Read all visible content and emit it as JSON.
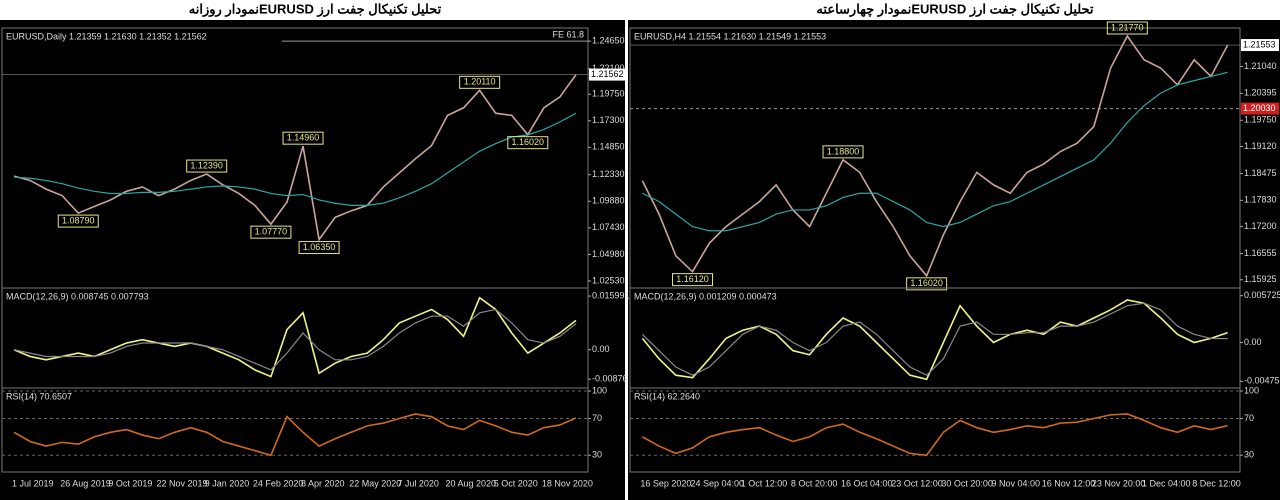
{
  "chart_data": [
    {
      "type": "line",
      "title": "تحلیل تکنیکال جفت ارز EURUSDنمودار روزانه",
      "label": "EURUSD,Daily  1.21359 1.21630 1.21352 1.21562",
      "ylim": [
        1.0216,
        1.2558
      ],
      "yticks": [
        {
          "value": 1.2465,
          "label": "1.24650"
        },
        {
          "value": 1.221,
          "label": "1.22100"
        },
        {
          "value": 1.1975,
          "label": "1.19750"
        },
        {
          "value": 1.173,
          "label": "1.17300"
        },
        {
          "value": 1.1485,
          "label": "1.14850"
        },
        {
          "value": 1.1233,
          "label": "1.12330"
        },
        {
          "value": 1.0988,
          "label": "1.09880"
        },
        {
          "value": 1.0743,
          "label": "1.07430"
        },
        {
          "value": 1.0498,
          "label": "1.04980"
        },
        {
          "value": 1.0253,
          "label": "1.02530"
        }
      ],
      "series": [
        {
          "color": "#c9a59a",
          "values": [
            1.122,
            1.118,
            1.11,
            1.104,
            1.0879,
            1.094,
            1.1,
            1.108,
            1.112,
            1.104,
            1.11,
            1.118,
            1.1239,
            1.114,
            1.106,
            1.095,
            1.0777,
            1.098,
            1.1496,
            1.0635,
            1.084,
            1.09,
            1.095,
            1.112,
            1.125,
            1.138,
            1.15,
            1.178,
            1.185,
            1.2011,
            1.18,
            1.178,
            1.1602,
            1.185,
            1.195,
            1.2156
          ]
        },
        {
          "color": "#2aa7a7",
          "values": [
            1.121,
            1.12,
            1.118,
            1.115,
            1.111,
            1.108,
            1.106,
            1.106,
            1.107,
            1.107,
            1.108,
            1.11,
            1.112,
            1.113,
            1.112,
            1.11,
            1.106,
            1.104,
            1.105,
            1.1,
            1.097,
            1.095,
            1.095,
            1.097,
            1.102,
            1.108,
            1.115,
            1.125,
            1.135,
            1.145,
            1.152,
            1.158,
            1.16,
            1.165,
            1.172,
            1.18
          ]
        }
      ],
      "annotations": [
        {
          "value": 1.0879,
          "label": "1.08790"
        },
        {
          "value": 1.1239,
          "label": "1.12390"
        },
        {
          "value": 1.0777,
          "label": "1.07770"
        },
        {
          "value": 1.1496,
          "label": "1.14960"
        },
        {
          "value": 1.0635,
          "label": "1.06350"
        },
        {
          "value": 1.2011,
          "label": "1.20110"
        },
        {
          "value": 1.1602,
          "label": "1.16020"
        }
      ],
      "hlines": [
        {
          "value": 1.2465,
          "label": "FE 61.8"
        }
      ],
      "last": {
        "value": 1.21562,
        "label": "1.21562"
      }
    },
    {
      "type": "line",
      "label": "MACD(12,26,9) 0.008745 0.007793",
      "ylim": [
        -0.0105,
        0.0175
      ],
      "yticks": [
        0.015991,
        {
          "value": 0,
          "label": "0.00"
        },
        -0.00876
      ],
      "series": [
        {
          "color": "#f2f28a",
          "values": [
            0.0,
            -0.002,
            -0.003,
            -0.002,
            -0.001,
            -0.002,
            0.0,
            0.002,
            0.003,
            0.002,
            0.001,
            0.002,
            0.001,
            -0.001,
            -0.003,
            -0.006,
            -0.008,
            0.006,
            0.011,
            -0.007,
            -0.004,
            -0.002,
            -0.001,
            0.003,
            0.008,
            0.01,
            0.012,
            0.009,
            0.004,
            0.0155,
            0.012,
            0.005,
            -0.001,
            0.002,
            0.005,
            0.008745
          ]
        },
        {
          "color": "#8a8a8a",
          "values": [
            0.0,
            -0.001,
            -0.002,
            -0.002,
            -0.002,
            -0.002,
            -0.001,
            0.001,
            0.002,
            0.002,
            0.002,
            0.002,
            0.001,
            0.0,
            -0.002,
            -0.004,
            -0.006,
            -0.001,
            0.005,
            0.0,
            -0.003,
            -0.003,
            -0.002,
            0.001,
            0.005,
            0.008,
            0.01,
            0.01,
            0.007,
            0.011,
            0.012,
            0.008,
            0.003,
            0.002,
            0.004,
            0.007793
          ]
        }
      ]
    },
    {
      "type": "line",
      "label": "RSI(14) 70.6507",
      "ylim": [
        15,
        100
      ],
      "yticks": [
        100,
        70,
        30
      ],
      "grid": true,
      "categories": [
        "1 Jul 2019",
        null,
        null,
        "26 Aug 2019",
        null,
        null,
        "9 Oct 2019",
        null,
        null,
        "22 Nov 2019",
        null,
        null,
        "9 Jan 2020",
        null,
        null,
        "24 Feb 2020",
        null,
        null,
        "8 Apr 2020",
        null,
        null,
        "22 May 2020",
        null,
        null,
        "7 Jul 2020",
        null,
        null,
        "20 Aug 2020",
        null,
        null,
        "5 Oct 2020",
        null,
        null,
        "18 Nov 2020",
        null,
        null
      ],
      "series": [
        {
          "color": "#d2691e",
          "values": [
            55,
            45,
            40,
            44,
            42,
            50,
            55,
            58,
            52,
            48,
            55,
            60,
            55,
            45,
            40,
            35,
            30,
            72,
            55,
            40,
            48,
            55,
            62,
            65,
            70,
            75,
            72,
            62,
            58,
            68,
            62,
            55,
            52,
            60,
            63,
            70.6507
          ]
        }
      ]
    },
    {
      "type": "line",
      "title": "تحلیل تکنیکال جفت ارز EURUSDنمودار چهارساعته",
      "label": "EURUSD,H4  1.21554 1.21630 1.21549 1.21553",
      "ylim": [
        1.158,
        1.2189
      ],
      "yticks": [
        {
          "value": 1.2104,
          "label": "1.21040"
        },
        {
          "value": 1.20395,
          "label": "1.20395"
        },
        {
          "value": 1.1975,
          "label": "1.19750"
        },
        {
          "value": 1.1912,
          "label": "1.19120"
        },
        {
          "value": 1.18475,
          "label": "1.18475"
        },
        {
          "value": 1.1783,
          "label": "1.17830"
        },
        {
          "value": 1.172,
          "label": "1.17200"
        },
        {
          "value": 1.16555,
          "label": "1.16555"
        },
        {
          "value": 1.15925,
          "label": "1.15925"
        }
      ],
      "series": [
        {
          "color": "#c9a59a",
          "values": [
            1.183,
            1.175,
            1.165,
            1.1612,
            1.168,
            1.172,
            1.175,
            1.178,
            1.182,
            1.176,
            1.172,
            1.18,
            1.188,
            1.185,
            1.178,
            1.172,
            1.165,
            1.1602,
            1.17,
            1.178,
            1.185,
            1.182,
            1.18,
            1.185,
            1.187,
            1.19,
            1.192,
            1.196,
            1.21,
            1.2177,
            1.212,
            1.21,
            1.206,
            1.212,
            1.208,
            1.2155
          ]
        },
        {
          "color": "#2aa7a7",
          "values": [
            1.18,
            1.178,
            1.175,
            1.172,
            1.171,
            1.171,
            1.172,
            1.173,
            1.175,
            1.176,
            1.176,
            1.177,
            1.179,
            1.18,
            1.18,
            1.178,
            1.176,
            1.173,
            1.172,
            1.173,
            1.175,
            1.177,
            1.178,
            1.18,
            1.182,
            1.184,
            1.186,
            1.188,
            1.192,
            1.197,
            1.201,
            1.204,
            1.206,
            1.207,
            1.208,
            1.209
          ]
        }
      ],
      "annotations": [
        {
          "value": 1.1612,
          "label": "1.16120"
        },
        {
          "value": 1.188,
          "label": "1.18800"
        },
        {
          "value": 1.1602,
          "label": "1.16020"
        },
        {
          "value": 1.2177,
          "label": "1.21770"
        }
      ],
      "hlines": [
        {
          "value": 1.2003,
          "label": "1.20030"
        }
      ],
      "last": {
        "value": 1.21553,
        "label": "1.21553"
      }
    },
    {
      "type": "line",
      "label": "MACD(12,26,9) 0.001209 0.000473",
      "ylim": [
        -0.0052,
        0.0063
      ],
      "yticks": [
        0.005725,
        {
          "value": 0,
          "label": "0.00"
        },
        -0.004755
      ],
      "series": [
        {
          "color": "#f2f28a",
          "values": [
            0.0005,
            -0.002,
            -0.004,
            -0.0043,
            -0.002,
            0.0005,
            0.0015,
            0.002,
            0.001,
            -0.001,
            -0.0015,
            0.001,
            0.003,
            0.002,
            0.0,
            -0.002,
            -0.004,
            -0.0045,
            0.0,
            0.0045,
            0.002,
            0.0,
            0.001,
            0.0015,
            0.001,
            0.0025,
            0.002,
            0.003,
            0.004,
            0.0052,
            0.0048,
            0.003,
            0.001,
            0.0,
            0.0005,
            0.001209
          ]
        },
        {
          "color": "#8a8a8a",
          "values": [
            0.001,
            -0.001,
            -0.003,
            -0.004,
            -0.003,
            -0.001,
            0.001,
            0.002,
            0.0015,
            0.0,
            -0.001,
            0.0,
            0.002,
            0.0025,
            0.001,
            -0.001,
            -0.003,
            -0.004,
            -0.002,
            0.002,
            0.0025,
            0.001,
            0.001,
            0.0012,
            0.0012,
            0.002,
            0.002,
            0.0025,
            0.0035,
            0.0045,
            0.0048,
            0.004,
            0.002,
            0.001,
            0.0005,
            0.000473
          ]
        }
      ]
    },
    {
      "type": "line",
      "label": "RSI(14) 62.2640",
      "ylim": [
        15,
        100
      ],
      "yticks": [
        100,
        70,
        30
      ],
      "grid": true,
      "categories": [
        "16 Sep 2020",
        null,
        null,
        "24 Sep 04:00",
        null,
        null,
        "1 Oct 12:00",
        null,
        null,
        "8 Oct 20:00",
        null,
        null,
        "16 Oct 04:00",
        null,
        null,
        "23 Oct 12:00",
        null,
        null,
        "30 Oct 20:00",
        null,
        null,
        "9 Nov 04:00",
        null,
        null,
        "16 Nov 12:00",
        null,
        null,
        "23 Nov 20:00",
        null,
        null,
        "1 Dec 04:00",
        null,
        null,
        "8 Dec 12:00",
        null,
        null
      ],
      "series": [
        {
          "color": "#d2691e",
          "values": [
            50,
            40,
            32,
            38,
            50,
            55,
            58,
            60,
            52,
            45,
            50,
            60,
            64,
            55,
            48,
            40,
            32,
            30,
            55,
            68,
            60,
            55,
            58,
            62,
            60,
            65,
            66,
            70,
            74,
            75,
            68,
            60,
            55,
            62,
            58,
            62.264
          ]
        }
      ]
    }
  ]
}
